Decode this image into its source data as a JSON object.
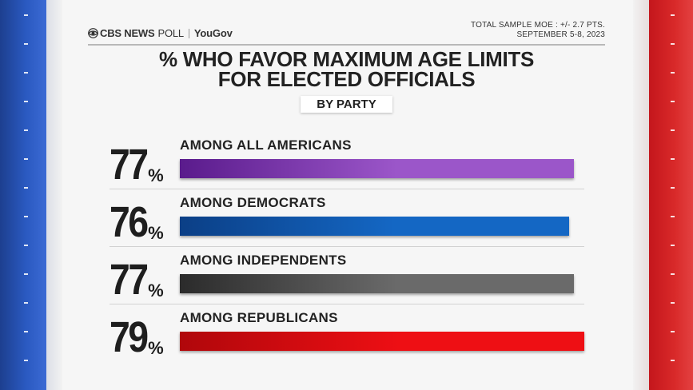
{
  "header": {
    "brand": "CBS NEWS",
    "brand_suffix": "POLL",
    "partner": "YouGov",
    "moe_line1": "TOTAL SAMPLE MOE : +/- 2.7 PTS.",
    "moe_line2": "SEPTEMBER 5-8, 2023"
  },
  "title_line1": "% WHO FAVOR MAXIMUM AGE LIMITS",
  "title_line2": "FOR ELECTED OFFICIALS",
  "subtitle": "BY PARTY",
  "chart_data": {
    "type": "bar",
    "orientation": "horizontal",
    "title": "% WHO FAVOR MAXIMUM AGE LIMITS FOR ELECTED OFFICIALS",
    "subtitle": "BY PARTY",
    "categories": [
      "AMONG ALL AMERICANS",
      "AMONG DEMOCRATS",
      "AMONG INDEPENDENTS",
      "AMONG REPUBLICANS"
    ],
    "values": [
      77,
      76,
      77,
      79
    ],
    "value_labels": [
      "77",
      "76",
      "77",
      "79"
    ],
    "unit": "%",
    "xlim": [
      0,
      79
    ],
    "colors": [
      [
        "#5a1b8c",
        "#9b56c9"
      ],
      [
        "#0b3f86",
        "#1467c4"
      ],
      [
        "#2b2b2b",
        "#6a6a6a"
      ],
      [
        "#b0070b",
        "#ee0f14"
      ]
    ],
    "grid": false,
    "legend": "none"
  },
  "colors": {
    "left_stripe": "#2a59c0",
    "right_stripe": "#d92a2a",
    "panel": "#f6f6f6"
  }
}
